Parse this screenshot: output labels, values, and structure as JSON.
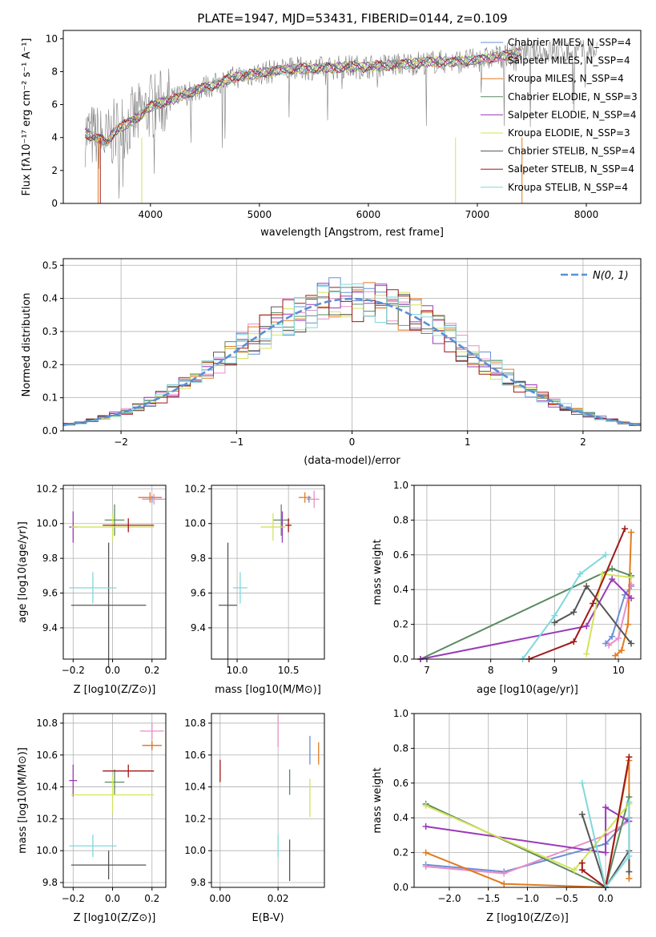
{
  "figure": {
    "title": "PLATE=1947, MJD=53431, FIBERID=0144, z=0.109"
  },
  "chart_data": [
    {
      "id": "spectrum",
      "type": "line",
      "title": "PLATE=1947, MJD=53431, FIBERID=0144, z=0.109",
      "xlabel": "wavelength [Angstrom, rest frame]",
      "ylabel": "Flux [fλ10⁻¹⁷ erg cm⁻² s⁻¹ A⁻¹]",
      "xlim": [
        3200,
        8500
      ],
      "ylim": [
        0,
        10.5
      ],
      "xticks": [
        4000,
        5000,
        6000,
        7000,
        8000
      ],
      "yticks": [
        0,
        2,
        4,
        6,
        8,
        10
      ],
      "grid": false,
      "legend_position": "right",
      "continuum": {
        "x": [
          3400,
          3450,
          3500,
          3550,
          3600,
          3650,
          3700,
          3750,
          3800,
          3850,
          3900,
          3950,
          4000,
          4100,
          4200,
          4300,
          4400,
          4500,
          4600,
          4700,
          4800,
          4900,
          5000,
          5200,
          5400,
          5600,
          5800,
          6000,
          6200,
          6400,
          6600,
          6800,
          7000,
          7200,
          7400
        ],
        "y": [
          4.3,
          4.1,
          4.0,
          3.9,
          3.7,
          4.2,
          4.5,
          4.7,
          4.9,
          5.1,
          5.3,
          5.6,
          5.9,
          6.1,
          6.3,
          6.6,
          6.8,
          7.1,
          7.2,
          7.5,
          7.7,
          7.8,
          7.9,
          8.1,
          8.2,
          8.2,
          8.3,
          8.3,
          8.4,
          8.5,
          8.6,
          8.6,
          8.7,
          8.9,
          9.2
        ]
      },
      "models": [
        {
          "name": "Chabrier MILES, N_SSP=4",
          "color": "#6a8fd6"
        },
        {
          "name": "Salpeter MILES, N_SSP=4",
          "color": "#e88ec7"
        },
        {
          "name": "Kroupa MILES, N_SSP=4",
          "color": "#e07b20"
        },
        {
          "name": "Chabrier ELODIE, N_SSP=3",
          "color": "#5b8a62"
        },
        {
          "name": "Salpeter ELODIE, N_SSP=4",
          "color": "#9a3ab8"
        },
        {
          "name": "Kroupa ELODIE, N_SSP=3",
          "color": "#d4e35a"
        },
        {
          "name": "Chabrier STELIB, N_SSP=4",
          "color": "#555555"
        },
        {
          "name": "Salpeter STELIB, N_SSP=4",
          "color": "#a01818"
        },
        {
          "name": "Kroupa STELIB, N_SSP=4",
          "color": "#7fd8dc"
        }
      ]
    },
    {
      "id": "residuals",
      "type": "histogram",
      "xlabel": "(data-model)/error",
      "ylabel": "Normed distribution",
      "xlim": [
        -2.5,
        2.5
      ],
      "ylim": [
        0,
        0.52
      ],
      "xticks": [
        -2,
        -1,
        0,
        1,
        2
      ],
      "yticks": [
        0.0,
        0.1,
        0.2,
        0.3,
        0.4,
        0.5
      ],
      "grid": true,
      "legend_position": "top-right",
      "reference": {
        "name": "N(0, 1)",
        "mean": 0,
        "sigma": 1,
        "color": "#5a8fd6"
      },
      "bin_width": 0.1,
      "bin_start": -2.5
    },
    {
      "id": "age_vs_Z",
      "type": "scatter",
      "xlabel": "Z [log10(Z/Z⊙)]",
      "ylabel": "age  [log10(age/yr)]",
      "xlim": [
        -0.25,
        0.27
      ],
      "ylim": [
        9.22,
        10.22
      ],
      "xticks": [
        -0.2,
        0.0,
        0.2
      ],
      "yticks": [
        9.4,
        9.6,
        9.8,
        10.0,
        10.2
      ],
      "grid": true,
      "points": [
        {
          "model": 0,
          "x": 0.2,
          "y": 10.14,
          "xerr": 0.05,
          "yerr": 0.02
        },
        {
          "model": 1,
          "x": 0.21,
          "y": 10.14,
          "xerr": 0.06,
          "yerr": 0.03
        },
        {
          "model": 2,
          "x": 0.19,
          "y": 10.15,
          "xerr": 0.06,
          "yerr": 0.03
        },
        {
          "model": 3,
          "x": 0.01,
          "y": 10.02,
          "xerr": 0.05,
          "yerr": 0.09
        },
        {
          "model": 4,
          "x": -0.2,
          "y": 9.98,
          "xerr": 0.02,
          "yerr": 0.09
        },
        {
          "model": 5,
          "x": 0.0,
          "y": 9.98,
          "xerr": 0.21,
          "yerr": 0.08
        },
        {
          "model": 6,
          "x": -0.02,
          "y": 9.53,
          "xerr": 0.19,
          "yerr": 0.36
        },
        {
          "model": 7,
          "x": 0.08,
          "y": 9.99,
          "xerr": 0.13,
          "yerr": 0.04
        },
        {
          "model": 8,
          "x": -0.1,
          "y": 9.63,
          "xerr": 0.12,
          "yerr": 0.09
        }
      ]
    },
    {
      "id": "age_vs_mass",
      "type": "scatter",
      "xlabel": "mass [log10(M/M⊙)]",
      "ylabel": "",
      "xlim": [
        9.75,
        10.85
      ],
      "ylim": [
        9.22,
        10.22
      ],
      "xticks": [
        10.0,
        10.5
      ],
      "yticks": [
        9.4,
        9.6,
        9.8,
        10.0,
        10.2
      ],
      "grid": true,
      "points": [
        {
          "model": 0,
          "x": 10.7,
          "y": 10.14,
          "xerr": 0.02,
          "yerr": 0.02
        },
        {
          "model": 1,
          "x": 10.75,
          "y": 10.14,
          "xerr": 0.05,
          "yerr": 0.05
        },
        {
          "model": 2,
          "x": 10.66,
          "y": 10.15,
          "xerr": 0.06,
          "yerr": 0.03
        },
        {
          "model": 3,
          "x": 10.43,
          "y": 10.02,
          "xerr": 0.08,
          "yerr": 0.09
        },
        {
          "model": 4,
          "x": 10.44,
          "y": 9.98,
          "xerr": 0.02,
          "yerr": 0.09
        },
        {
          "model": 5,
          "x": 10.35,
          "y": 9.98,
          "xerr": 0.12,
          "yerr": 0.08
        },
        {
          "model": 6,
          "x": 9.91,
          "y": 9.53,
          "xerr": 0.09,
          "yerr": 0.36
        },
        {
          "model": 7,
          "x": 10.5,
          "y": 9.99,
          "xerr": 0.03,
          "yerr": 0.04
        },
        {
          "model": 8,
          "x": 10.03,
          "y": 9.63,
          "xerr": 0.07,
          "yerr": 0.09
        }
      ]
    },
    {
      "id": "mass_weight_vs_age",
      "type": "line",
      "xlabel": "age  [log10(age/yr)]",
      "ylabel": "mass weight",
      "xlim": [
        6.8,
        10.35
      ],
      "ylim": [
        0,
        1.0
      ],
      "xticks": [
        7,
        8,
        9,
        10
      ],
      "yticks": [
        0.0,
        0.2,
        0.4,
        0.6,
        0.8,
        1.0
      ],
      "grid": true,
      "series": [
        {
          "model": 0,
          "x": [
            9.8,
            9.9,
            10.1,
            10.2
          ],
          "y": [
            0.09,
            0.13,
            0.37,
            0.42
          ]
        },
        {
          "model": 1,
          "x": [
            9.85,
            10.0,
            10.15,
            10.2
          ],
          "y": [
            0.08,
            0.12,
            0.35,
            0.43
          ]
        },
        {
          "model": 2,
          "x": [
            9.95,
            10.05,
            10.15,
            10.2
          ],
          "y": [
            0.02,
            0.05,
            0.2,
            0.73
          ]
        },
        {
          "model": 3,
          "x": [
            6.9,
            9.9,
            10.2
          ],
          "y": [
            0.0,
            0.52,
            0.48
          ]
        },
        {
          "model": 4,
          "x": [
            6.9,
            9.5,
            9.9,
            10.2
          ],
          "y": [
            0.0,
            0.19,
            0.46,
            0.35
          ]
        },
        {
          "model": 5,
          "x": [
            9.5,
            9.75,
            10.2
          ],
          "y": [
            0.03,
            0.49,
            0.47
          ]
        },
        {
          "model": 6,
          "x": [
            9.0,
            9.3,
            9.5,
            10.2
          ],
          "y": [
            0.21,
            0.27,
            0.42,
            0.09
          ]
        },
        {
          "model": 7,
          "x": [
            8.6,
            9.3,
            9.6,
            10.1
          ],
          "y": [
            0.0,
            0.1,
            0.32,
            0.75
          ]
        },
        {
          "model": 8,
          "x": [
            8.5,
            9.0,
            9.4,
            9.8
          ],
          "y": [
            0.0,
            0.25,
            0.49,
            0.6
          ]
        }
      ]
    },
    {
      "id": "mass_vs_Z",
      "type": "scatter",
      "xlabel": "Z [log10(Z/Z⊙)]",
      "ylabel": "mass [log10(M/M⊙)]",
      "xlim": [
        -0.25,
        0.27
      ],
      "ylim": [
        9.77,
        10.86
      ],
      "xticks": [
        -0.2,
        0.0,
        0.2
      ],
      "yticks": [
        9.8,
        10.0,
        10.2,
        10.4,
        10.6,
        10.8
      ],
      "grid": true,
      "points": [
        {
          "model": 0,
          "x": 0.2,
          "y": 10.66,
          "xerr": 0.04,
          "yerr": 0.02
        },
        {
          "model": 1,
          "x": 0.2,
          "y": 10.75,
          "xerr": 0.06,
          "yerr": 0.05
        },
        {
          "model": 2,
          "x": 0.2,
          "y": 10.66,
          "xerr": 0.05,
          "yerr": 0.03
        },
        {
          "model": 3,
          "x": 0.01,
          "y": 10.43,
          "xerr": 0.05,
          "yerr": 0.08
        },
        {
          "model": 4,
          "x": -0.2,
          "y": 10.44,
          "xerr": 0.02,
          "yerr": 0.1
        },
        {
          "model": 5,
          "x": 0.0,
          "y": 10.35,
          "xerr": 0.21,
          "yerr": 0.12
        },
        {
          "model": 6,
          "x": -0.02,
          "y": 9.91,
          "xerr": 0.19,
          "yerr": 0.09
        },
        {
          "model": 7,
          "x": 0.08,
          "y": 10.5,
          "xerr": 0.13,
          "yerr": 0.04
        },
        {
          "model": 8,
          "x": -0.1,
          "y": 10.03,
          "xerr": 0.12,
          "yerr": 0.07
        }
      ]
    },
    {
      "id": "mass_vs_ebv",
      "type": "scatter",
      "xlabel": "E(B-V)",
      "ylabel": "",
      "xlim": [
        -0.003,
        0.036
      ],
      "ylim": [
        9.77,
        10.86
      ],
      "xticks": [
        0.0,
        0.02
      ],
      "yticks": [
        9.8,
        10.0,
        10.2,
        10.4,
        10.6,
        10.8
      ],
      "grid": true,
      "points": [
        {
          "model": 0,
          "x": 0.031,
          "y": 10.63,
          "yerr": 0.09
        },
        {
          "model": 1,
          "x": 0.02,
          "y": 10.75,
          "yerr": 0.1
        },
        {
          "model": 2,
          "x": 0.034,
          "y": 10.61,
          "yerr": 0.07
        },
        {
          "model": 3,
          "x": 0.024,
          "y": 10.43,
          "yerr": 0.08
        },
        {
          "model": 4,
          "x": 0.0,
          "y": 10.8,
          "yerr": 0.0
        },
        {
          "model": 5,
          "x": 0.031,
          "y": 10.33,
          "yerr": 0.12
        },
        {
          "model": 6,
          "x": 0.024,
          "y": 9.94,
          "yerr": 0.13
        },
        {
          "model": 7,
          "x": 0.0,
          "y": 10.5,
          "yerr": 0.07
        },
        {
          "model": 8,
          "x": 0.02,
          "y": 10.03,
          "yerr": 0.07
        }
      ]
    },
    {
      "id": "mass_weight_vs_Z",
      "type": "line",
      "xlabel": "Z [log10(Z/Z⊙)]",
      "ylabel": "mass weight",
      "xlim": [
        -2.45,
        0.45
      ],
      "ylim": [
        0,
        1.0
      ],
      "xticks": [
        -2.0,
        -1.5,
        -1.0,
        -0.5,
        0.0
      ],
      "yticks": [
        0.0,
        0.2,
        0.4,
        0.6,
        0.8,
        1.0
      ],
      "grid": true,
      "series": [
        {
          "model": 0,
          "x": [
            -2.3,
            -1.3,
            0.0,
            0.3
          ],
          "y": [
            0.13,
            0.09,
            0.25,
            0.4
          ]
        },
        {
          "model": 1,
          "x": [
            -2.3,
            -1.3,
            0.0,
            0.3
          ],
          "y": [
            0.12,
            0.08,
            0.3,
            0.38
          ]
        },
        {
          "model": 2,
          "x": [
            -2.3,
            -1.3,
            0.0,
            0.3,
            0.3
          ],
          "y": [
            0.2,
            0.02,
            0.0,
            0.73,
            0.05
          ]
        },
        {
          "model": 3,
          "x": [
            -2.3,
            0.0,
            0.3
          ],
          "y": [
            0.48,
            0.0,
            0.52
          ]
        },
        {
          "model": 4,
          "x": [
            -2.3,
            0.0,
            0.0,
            0.3
          ],
          "y": [
            0.35,
            0.2,
            0.46,
            0.38
          ]
        },
        {
          "model": 5,
          "x": [
            -2.3,
            -0.4,
            0.3
          ],
          "y": [
            0.47,
            0.1,
            0.48
          ]
        },
        {
          "model": 6,
          "x": [
            -0.3,
            0.0,
            0.3,
            0.3
          ],
          "y": [
            0.42,
            0.0,
            0.21,
            0.09
          ]
        },
        {
          "model": 7,
          "x": [
            -0.3,
            -0.3,
            0.0,
            0.3
          ],
          "y": [
            0.14,
            0.1,
            0.0,
            0.75
          ]
        },
        {
          "model": 8,
          "x": [
            -0.3,
            0.0,
            0.3,
            0.3
          ],
          "y": [
            0.6,
            0.0,
            0.18,
            0.49
          ]
        }
      ]
    }
  ]
}
